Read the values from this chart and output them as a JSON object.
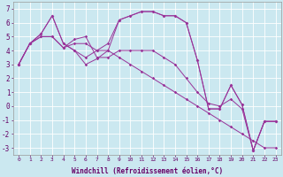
{
  "xlabel": "Windchill (Refroidissement éolien,°C)",
  "background_color": "#cbe8f0",
  "line_color": "#993399",
  "ylim": [
    -3.5,
    7.5
  ],
  "xlim": [
    -0.5,
    23.5
  ],
  "yticks": [
    -3,
    -2,
    -1,
    0,
    1,
    2,
    3,
    4,
    5,
    6,
    7
  ],
  "xticks": [
    0,
    1,
    2,
    3,
    4,
    5,
    6,
    7,
    8,
    9,
    10,
    11,
    12,
    13,
    14,
    15,
    16,
    17,
    18,
    19,
    20,
    21,
    22,
    23
  ],
  "series": [
    [
      3,
      4.5,
      5.2,
      6.5,
      4.5,
      4.0,
      3.0,
      3.4,
      4.0,
      6.2,
      6.5,
      6.8,
      6.8,
      6.5,
      6.5,
      6.0,
      3.3,
      -0.2,
      -0.2,
      1.5,
      0.1,
      -3.2,
      -1.1,
      -1.1
    ],
    [
      3,
      4.5,
      5.0,
      5.0,
      4.2,
      4.5,
      4.5,
      4.0,
      4.0,
      3.5,
      3.0,
      2.5,
      2.0,
      1.5,
      1.0,
      0.5,
      0.0,
      -0.5,
      -1.0,
      -1.5,
      -2.0,
      -2.5,
      -3.0,
      -3.0
    ],
    [
      3,
      4.5,
      5.0,
      5.0,
      4.2,
      4.8,
      5.0,
      3.5,
      3.5,
      4.0,
      4.0,
      4.0,
      4.0,
      3.5,
      3.0,
      2.0,
      1.0,
      0.2,
      0.0,
      0.5,
      -0.2,
      -3.2,
      -1.1,
      -1.1
    ],
    [
      3,
      4.5,
      5.2,
      6.5,
      4.5,
      4.0,
      3.5,
      4.0,
      4.5,
      6.2,
      6.5,
      6.8,
      6.8,
      6.5,
      6.5,
      6.0,
      3.3,
      -0.2,
      -0.2,
      1.5,
      0.1,
      -3.2,
      -1.1,
      -1.1
    ]
  ]
}
